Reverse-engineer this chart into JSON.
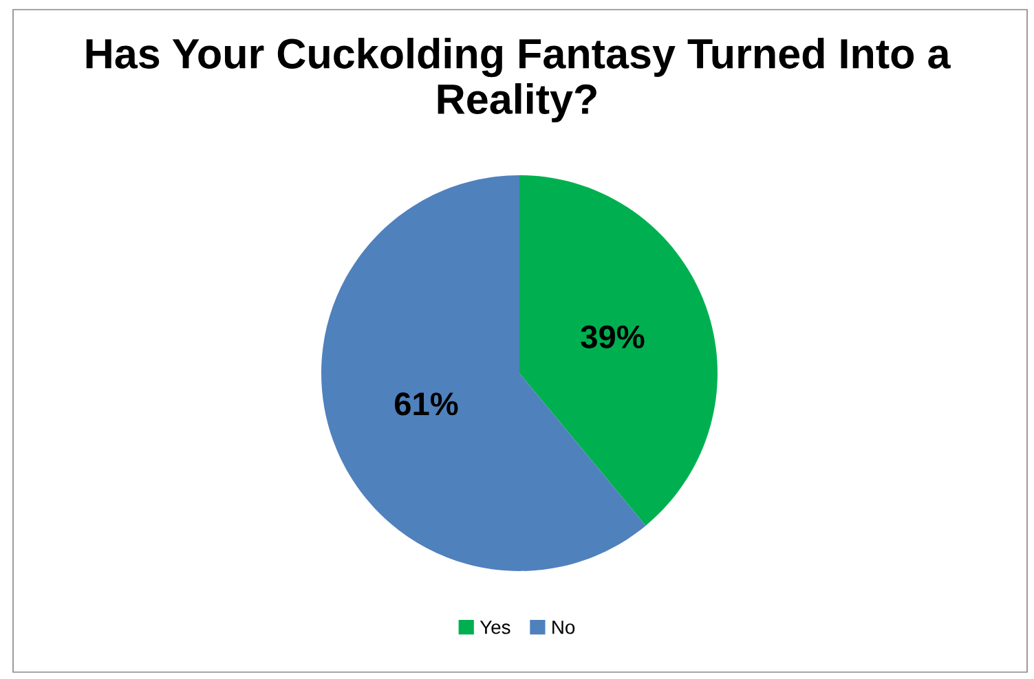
{
  "chart_data": {
    "type": "pie",
    "title": "Has Your Cuckolding Fantasy Turned Into a Reality?",
    "categories": [
      "Yes",
      "No"
    ],
    "values": [
      39,
      61
    ],
    "colors": [
      "#00b050",
      "#4f81bd"
    ],
    "value_labels": [
      "39%",
      "61%"
    ],
    "legend": "bottom"
  }
}
